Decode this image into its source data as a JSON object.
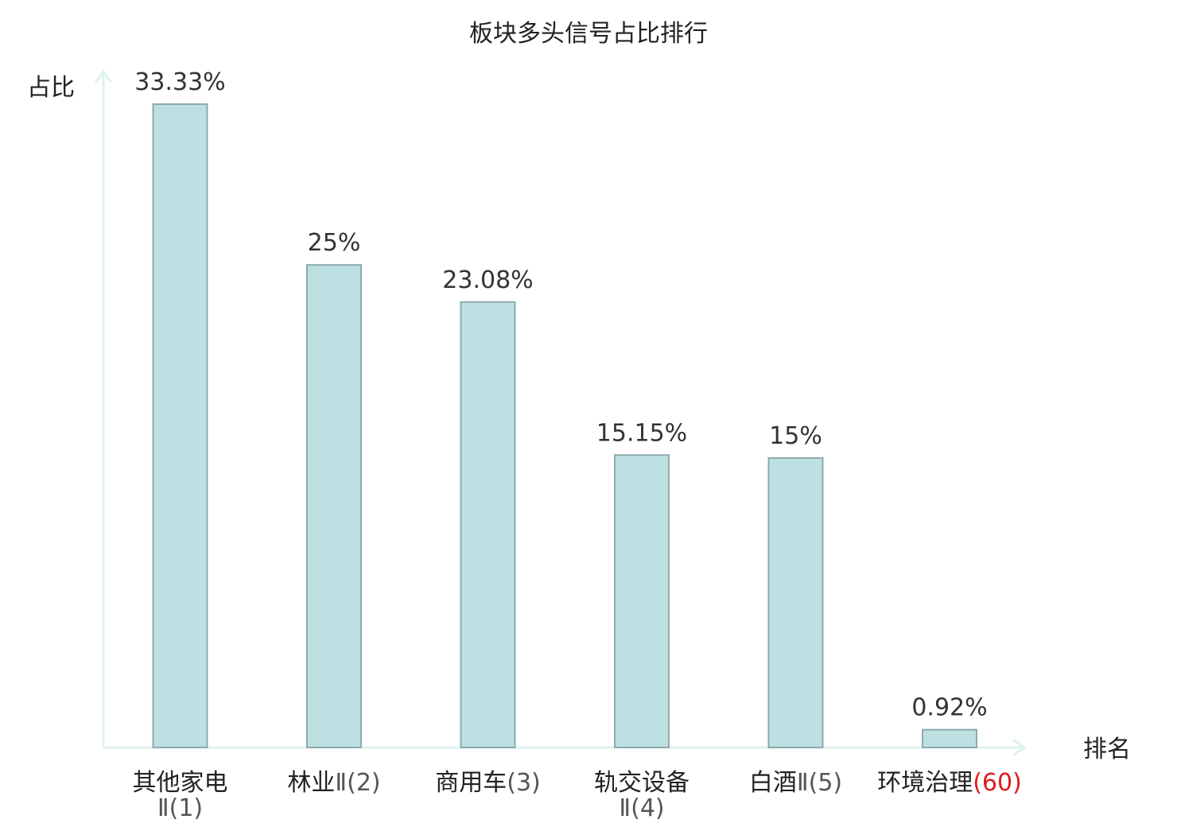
{
  "chart_data": {
    "type": "bar",
    "title": "板块多头信号占比排行",
    "ylabel": "占比",
    "xlabel": "排名",
    "ylim": [
      0,
      35
    ],
    "grid": false,
    "categories": [
      {
        "name": "其他家电",
        "rank": "Ⅱ(1)",
        "highlight": false
      },
      {
        "name": "林业",
        "rank": "Ⅱ(2)",
        "highlight": false
      },
      {
        "name": "商用车",
        "rank": "(3)",
        "highlight": false
      },
      {
        "name": "轨交设备",
        "rank": "Ⅱ(4)",
        "highlight": false
      },
      {
        "name": "白酒",
        "rank": "Ⅱ(5)",
        "highlight": false
      },
      {
        "name": "环境治理",
        "rank": "(60)",
        "highlight": true
      }
    ],
    "values": [
      33.33,
      25,
      23.08,
      15.15,
      15,
      0.92
    ],
    "value_labels": [
      "33.33%",
      "25%",
      "23.08%",
      "15.15%",
      "15%",
      "0.92%"
    ],
    "colors": {
      "bar_fill": "#bde0e2",
      "bar_stroke": "#8eaaae",
      "axis": "#e0f2ef",
      "highlight_text": "#e0191b",
      "text": "#222222"
    }
  }
}
